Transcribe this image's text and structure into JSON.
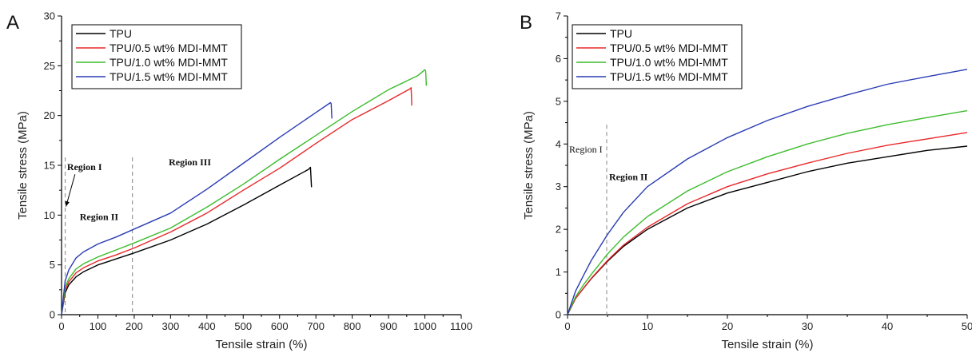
{
  "chart_data": [
    {
      "panel_label": "A",
      "type": "line",
      "xlabel": "Tensile strain (%)",
      "ylabel": "Tensile stress (MPa)",
      "xlim": [
        0,
        1100
      ],
      "ylim": [
        0,
        30
      ],
      "xticks": [
        0,
        100,
        200,
        300,
        400,
        500,
        600,
        700,
        800,
        900,
        1000,
        1100
      ],
      "yticks": [
        0,
        5,
        10,
        15,
        20,
        25,
        30
      ],
      "legend": "top-left",
      "grid": false,
      "series": [
        {
          "name": "TPU",
          "color": "#000000",
          "x": [
            0,
            10,
            20,
            40,
            60,
            100,
            150,
            200,
            300,
            400,
            500,
            600,
            680,
            685,
            688
          ],
          "y": [
            0,
            2.2,
            3.0,
            3.8,
            4.3,
            5.0,
            5.6,
            6.2,
            7.5,
            9.1,
            11.0,
            13.0,
            14.6,
            14.8,
            12.8
          ]
        },
        {
          "name": "TPU/0.5 wt% MDI-MMT",
          "color": "#e8282a",
          "x": [
            0,
            10,
            20,
            40,
            60,
            100,
            150,
            200,
            300,
            400,
            500,
            600,
            700,
            800,
            900,
            960,
            962,
            964
          ],
          "y": [
            0,
            2.5,
            3.3,
            4.2,
            4.7,
            5.4,
            6.0,
            6.7,
            8.3,
            10.2,
            12.5,
            14.7,
            17.2,
            19.6,
            21.5,
            22.7,
            22.8,
            21.0
          ]
        },
        {
          "name": "TPU/1.0 wt% MDI-MMT",
          "color": "#3cbc2c",
          "x": [
            0,
            10,
            20,
            40,
            60,
            100,
            150,
            200,
            300,
            400,
            500,
            600,
            700,
            800,
            900,
            980,
            1000,
            1002,
            1004
          ],
          "y": [
            0,
            2.8,
            3.6,
            4.6,
            5.1,
            5.8,
            6.5,
            7.2,
            8.7,
            10.8,
            13.1,
            15.6,
            18.0,
            20.4,
            22.6,
            24.0,
            24.6,
            24.5,
            23.0
          ]
        },
        {
          "name": "TPU/1.5 wt% MDI-MMT",
          "color": "#2a3cb4",
          "x": [
            0,
            10,
            20,
            40,
            60,
            100,
            150,
            200,
            300,
            400,
            500,
            600,
            700,
            740,
            742,
            744
          ],
          "y": [
            0,
            3.4,
            4.5,
            5.7,
            6.3,
            7.1,
            7.8,
            8.6,
            10.2,
            12.6,
            15.2,
            17.8,
            20.3,
            21.3,
            21.2,
            19.7
          ]
        }
      ],
      "vlines": [
        10,
        195
      ],
      "annotations": [
        {
          "text": "Region I",
          "x": 15,
          "y": 14.5,
          "arrow_to": [
            10,
            10.7
          ]
        },
        {
          "text": "Region II",
          "x": 50,
          "y": 9.5
        },
        {
          "text": "Region III",
          "x": 295,
          "y": 15.0
        }
      ]
    },
    {
      "panel_label": "B",
      "type": "line",
      "xlabel": "Tensile strain (%)",
      "ylabel": "Tensile stress (MPa)",
      "xlim": [
        0,
        50
      ],
      "ylim": [
        0,
        7
      ],
      "xticks": [
        0,
        10,
        20,
        30,
        40,
        50
      ],
      "yticks": [
        0,
        1,
        2,
        3,
        4,
        5,
        6,
        7
      ],
      "legend": "top-left",
      "grid": false,
      "series": [
        {
          "name": "TPU",
          "color": "#000000",
          "x": [
            0,
            1,
            2,
            3,
            5,
            7,
            10,
            15,
            20,
            25,
            30,
            35,
            40,
            45,
            50
          ],
          "y": [
            0,
            0.38,
            0.62,
            0.85,
            1.25,
            1.6,
            2.0,
            2.5,
            2.85,
            3.1,
            3.35,
            3.55,
            3.7,
            3.85,
            3.95
          ]
        },
        {
          "name": "TPU/0.5 wt% MDI-MMT",
          "color": "#e8282a",
          "x": [
            0,
            1,
            2,
            3,
            5,
            7,
            10,
            15,
            20,
            25,
            30,
            35,
            40,
            45,
            50
          ],
          "y": [
            0,
            0.38,
            0.62,
            0.86,
            1.27,
            1.63,
            2.05,
            2.6,
            3.0,
            3.3,
            3.55,
            3.78,
            3.97,
            4.12,
            4.27
          ]
        },
        {
          "name": "TPU/1.0 wt% MDI-MMT",
          "color": "#3cbc2c",
          "x": [
            0,
            1,
            2,
            3,
            5,
            7,
            10,
            15,
            20,
            25,
            30,
            35,
            40,
            45,
            50
          ],
          "y": [
            0,
            0.42,
            0.7,
            0.95,
            1.42,
            1.82,
            2.3,
            2.9,
            3.35,
            3.7,
            4.0,
            4.25,
            4.45,
            4.62,
            4.78
          ]
        },
        {
          "name": "TPU/1.5 wt% MDI-MMT",
          "color": "#2a3cb4",
          "x": [
            0,
            1,
            2,
            3,
            5,
            7,
            10,
            15,
            20,
            25,
            30,
            35,
            40,
            45,
            50
          ],
          "y": [
            0,
            0.55,
            0.92,
            1.28,
            1.88,
            2.4,
            3.0,
            3.65,
            4.15,
            4.55,
            4.88,
            5.15,
            5.4,
            5.58,
            5.75
          ]
        }
      ],
      "vlines": [
        4.9
      ],
      "annotations": [
        {
          "text": "Region I",
          "x": 0.2,
          "y": 3.8
        },
        {
          "text": "Region II",
          "x": 5.2,
          "y": 3.15
        }
      ]
    }
  ]
}
